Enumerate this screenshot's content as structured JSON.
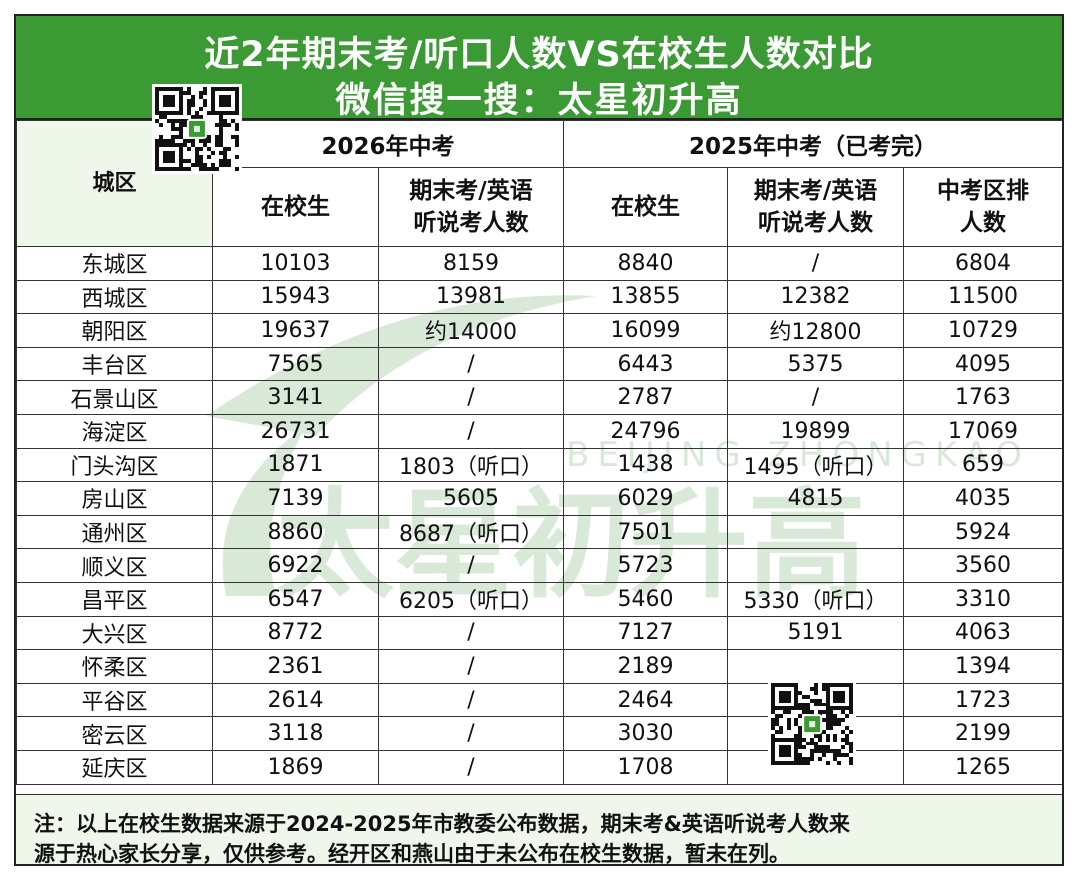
{
  "title": {
    "line1": "近2年期末考/听口人数VS在校生人数对比",
    "line2": "微信搜一搜：太星初升高"
  },
  "header": {
    "district_col": "城区",
    "group_2026": "2026年中考",
    "group_2025": "2025年中考（已考完）",
    "students": "在校生",
    "exam_count_2026": [
      "期末考/英语",
      "听说考人数"
    ],
    "exam_count_2025": [
      "期末考/英语",
      "听说考人数"
    ],
    "zk_count": [
      "中考区排",
      "人数"
    ]
  },
  "rows": [
    {
      "district": "东城区",
      "s2026": "10103",
      "e2026": "8159",
      "s2025": "8840",
      "e2025": "/",
      "zk": "6804"
    },
    {
      "district": "西城区",
      "s2026": "15943",
      "e2026": "13981",
      "s2025": "13855",
      "e2025": "12382",
      "zk": "11500"
    },
    {
      "district": "朝阳区",
      "s2026": "19637",
      "e2026": "约14000",
      "s2025": "16099",
      "e2025": "约12800",
      "zk": "10729"
    },
    {
      "district": "丰台区",
      "s2026": "7565",
      "e2026": "/",
      "s2025": "6443",
      "e2025": "5375",
      "zk": "4095"
    },
    {
      "district": "石景山区",
      "s2026": "3141",
      "e2026": "/",
      "s2025": "2787",
      "e2025": "/",
      "zk": "1763"
    },
    {
      "district": "海淀区",
      "s2026": "26731",
      "e2026": "/",
      "s2025": "24796",
      "e2025": "19899",
      "zk": "17069"
    },
    {
      "district": "门头沟区",
      "s2026": "1871",
      "e2026": "1803（听口）",
      "s2025": "1438",
      "e2025": "1495（听口）",
      "zk": "659"
    },
    {
      "district": "房山区",
      "s2026": "7139",
      "e2026": "5605",
      "s2025": "6029",
      "e2025": "4815",
      "zk": "4035"
    },
    {
      "district": "通州区",
      "s2026": "8860",
      "e2026": "8687（听口）",
      "s2025": "7501",
      "e2025": "",
      "zk": "5924"
    },
    {
      "district": "顺义区",
      "s2026": "6922",
      "e2026": "/",
      "s2025": "5723",
      "e2025": "",
      "zk": "3560"
    },
    {
      "district": "昌平区",
      "s2026": "6547",
      "e2026": "6205（听口）",
      "s2025": "5460",
      "e2025": "5330（听口）",
      "zk": "3310"
    },
    {
      "district": "大兴区",
      "s2026": "8772",
      "e2026": "/",
      "s2025": "7127",
      "e2025": "5191",
      "zk": "4063"
    },
    {
      "district": "怀柔区",
      "s2026": "2361",
      "e2026": "/",
      "s2025": "2189",
      "e2025": "",
      "zk": "1394"
    },
    {
      "district": "平谷区",
      "s2026": "2614",
      "e2026": "/",
      "s2025": "2464",
      "e2025": "",
      "zk": "1723"
    },
    {
      "district": "密云区",
      "s2026": "3118",
      "e2026": "/",
      "s2025": "3030",
      "e2025": "",
      "zk": "2199"
    },
    {
      "district": "延庆区",
      "s2026": "1869",
      "e2026": "/",
      "s2025": "1708",
      "e2025": "",
      "zk": "1265"
    }
  ],
  "note": {
    "line1": "注：以上在校生数据来源于2024-2025年市教委公布数据，期末考&英语听说考人数来",
    "line2": "源于热心家长分享，仅供参考。经开区和燕山由于未公布在校生数据，暂未在列。"
  },
  "watermark": {
    "brand": "太星初升高",
    "sub": "BEIJING ZHONGKAO"
  },
  "colors": {
    "title_bg": "#3c9a35",
    "header_bg": "#eef7e9",
    "watermark_green": "#2e8b2e",
    "watermark_orange": "#e8a020"
  }
}
